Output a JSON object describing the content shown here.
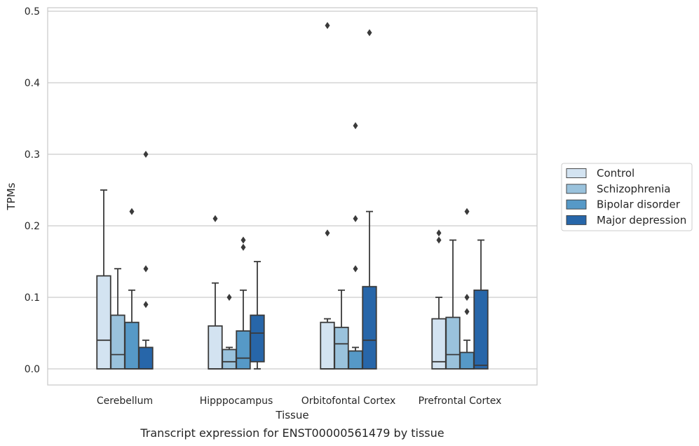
{
  "caption": "Transcript expression for ENST00000561479 by tissue",
  "chart_data": {
    "type": "box",
    "xlabel": "Tissue",
    "ylabel": "TPMs",
    "ylim": [
      -0.023,
      0.505
    ],
    "yticks": [
      "0.0",
      "0.1",
      "0.2",
      "0.3",
      "0.4",
      "0.5"
    ],
    "ytick_values": [
      0,
      0.1,
      0.2,
      0.3,
      0.4,
      0.5
    ],
    "grid": "horizontal",
    "legend_position": "right",
    "categories": [
      "Cerebellum",
      "Hipppocampus",
      "Orbitofontal Cortex",
      "Prefrontal Cortex"
    ],
    "series": [
      {
        "name": "Control",
        "color": "#d3e3f1",
        "boxes": [
          {
            "q1": 0,
            "median": 0.04,
            "q3": 0.13,
            "whisker_low": 0,
            "whisker_high": 0.25,
            "outliers": []
          },
          {
            "q1": 0,
            "median": 0,
            "q3": 0.06,
            "whisker_low": 0,
            "whisker_high": 0.12,
            "outliers": [
              0.21
            ]
          },
          {
            "q1": 0,
            "median": 0,
            "q3": 0.065,
            "whisker_low": 0,
            "whisker_high": 0.07,
            "outliers": [
              0.19,
              0.48
            ]
          },
          {
            "q1": 0,
            "median": 0.01,
            "q3": 0.07,
            "whisker_low": 0,
            "whisker_high": 0.1,
            "outliers": [
              0.18,
              0.19
            ]
          }
        ]
      },
      {
        "name": "Schizophrenia",
        "color": "#9ac2dc",
        "boxes": [
          {
            "q1": 0,
            "median": 0.02,
            "q3": 0.075,
            "whisker_low": 0,
            "whisker_high": 0.14,
            "outliers": []
          },
          {
            "q1": 0,
            "median": 0.01,
            "q3": 0.027,
            "whisker_low": 0,
            "whisker_high": 0.03,
            "outliers": [
              0.1
            ]
          },
          {
            "q1": 0,
            "median": 0.035,
            "q3": 0.058,
            "whisker_low": 0,
            "whisker_high": 0.11,
            "outliers": []
          },
          {
            "q1": 0,
            "median": 0.02,
            "q3": 0.072,
            "whisker_low": 0,
            "whisker_high": 0.18,
            "outliers": []
          }
        ]
      },
      {
        "name": "Bipolar disorder",
        "color": "#5699c7",
        "boxes": [
          {
            "q1": 0,
            "median": 0,
            "q3": 0.065,
            "whisker_low": 0,
            "whisker_high": 0.11,
            "outliers": [
              0.22
            ]
          },
          {
            "q1": 0,
            "median": 0.015,
            "q3": 0.053,
            "whisker_low": 0,
            "whisker_high": 0.11,
            "outliers": [
              0.17,
              0.18
            ]
          },
          {
            "q1": 0,
            "median": 0,
            "q3": 0.025,
            "whisker_low": 0,
            "whisker_high": 0.03,
            "outliers": [
              0.14,
              0.21,
              0.34
            ]
          },
          {
            "q1": 0,
            "median": 0,
            "q3": 0.023,
            "whisker_low": 0,
            "whisker_high": 0.04,
            "outliers": [
              0.08,
              0.1,
              0.22
            ]
          }
        ]
      },
      {
        "name": "Major depression",
        "color": "#2766a9",
        "boxes": [
          {
            "q1": 0,
            "median": 0,
            "q3": 0.03,
            "whisker_low": 0,
            "whisker_high": 0.04,
            "outliers": [
              0.09,
              0.14,
              0.3
            ]
          },
          {
            "q1": 0.01,
            "median": 0.05,
            "q3": 0.075,
            "whisker_low": 0,
            "whisker_high": 0.15,
            "outliers": []
          },
          {
            "q1": 0,
            "median": 0.04,
            "q3": 0.115,
            "whisker_low": 0,
            "whisker_high": 0.22,
            "outliers": [
              0.47
            ]
          },
          {
            "q1": 0,
            "median": 0.005,
            "q3": 0.11,
            "whisker_low": 0,
            "whisker_high": 0.18,
            "outliers": []
          }
        ]
      }
    ]
  }
}
